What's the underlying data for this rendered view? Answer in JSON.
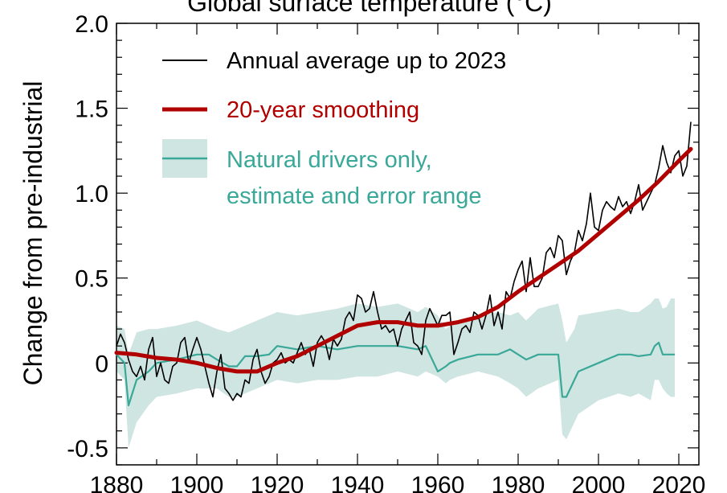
{
  "chart_data": {
    "type": "line",
    "title": "Global surface temperature (°C)",
    "xlabel": "",
    "ylabel": "Change from pre-industrial",
    "xlim": [
      1880,
      2025
    ],
    "ylim": [
      -0.6,
      2.0
    ],
    "x_ticks": [
      "1880",
      "1900",
      "1920",
      "1940",
      "1960",
      "1980",
      "2000",
      "2020"
    ],
    "y_ticks": [
      "2.0",
      "1.5",
      "1.0",
      "0.5",
      "0",
      "-0.5"
    ],
    "x_tick_values": [
      1880,
      1900,
      1920,
      1940,
      1960,
      1980,
      2000,
      2020
    ],
    "y_tick_values": [
      2.0,
      1.5,
      1.0,
      0.5,
      0,
      -0.5
    ],
    "grid": false,
    "legend_position": "top-left",
    "legend": {
      "annual": "Annual average up to 2023",
      "smooth": "20-year smoothing",
      "natural_line1": "Natural drivers only,",
      "natural_line2": "estimate and error range"
    },
    "colors": {
      "annual": "#000000",
      "smooth": "#b00000",
      "natural_line": "#3aa898",
      "natural_band": "#cfe5e2"
    },
    "series": [
      {
        "name": "Annual average up to 2023",
        "x": [
          1880,
          1881,
          1882,
          1883,
          1884,
          1885,
          1886,
          1887,
          1888,
          1889,
          1890,
          1891,
          1892,
          1893,
          1894,
          1895,
          1896,
          1897,
          1898,
          1899,
          1900,
          1901,
          1902,
          1903,
          1904,
          1905,
          1906,
          1907,
          1908,
          1909,
          1910,
          1911,
          1912,
          1913,
          1914,
          1915,
          1916,
          1917,
          1918,
          1919,
          1920,
          1921,
          1922,
          1923,
          1924,
          1925,
          1926,
          1927,
          1928,
          1929,
          1930,
          1931,
          1932,
          1933,
          1934,
          1935,
          1936,
          1937,
          1938,
          1939,
          1940,
          1941,
          1942,
          1943,
          1944,
          1945,
          1946,
          1947,
          1948,
          1949,
          1950,
          1951,
          1952,
          1953,
          1954,
          1955,
          1956,
          1957,
          1958,
          1959,
          1960,
          1961,
          1962,
          1963,
          1964,
          1965,
          1966,
          1967,
          1968,
          1969,
          1970,
          1971,
          1972,
          1973,
          1974,
          1975,
          1976,
          1977,
          1978,
          1979,
          1980,
          1981,
          1982,
          1983,
          1984,
          1985,
          1986,
          1987,
          1988,
          1989,
          1990,
          1991,
          1992,
          1993,
          1994,
          1995,
          1996,
          1997,
          1998,
          1999,
          2000,
          2001,
          2002,
          2003,
          2004,
          2005,
          2006,
          2007,
          2008,
          2009,
          2010,
          2011,
          2012,
          2013,
          2014,
          2015,
          2016,
          2017,
          2018,
          2019,
          2020,
          2021,
          2022,
          2023
        ],
        "values": [
          0.1,
          0.17,
          0.12,
          0.02,
          -0.05,
          -0.08,
          -0.02,
          -0.1,
          0.08,
          0.15,
          -0.08,
          0.0,
          -0.1,
          -0.12,
          -0.02,
          0.0,
          0.12,
          0.15,
          0.0,
          0.08,
          0.15,
          0.08,
          -0.02,
          -0.12,
          -0.2,
          -0.05,
          0.05,
          -0.15,
          -0.18,
          -0.22,
          -0.18,
          -0.2,
          -0.1,
          -0.12,
          0.02,
          0.08,
          -0.05,
          -0.12,
          -0.08,
          0.0,
          0.02,
          0.06,
          0.0,
          0.02,
          0.0,
          0.06,
          0.12,
          0.05,
          0.08,
          -0.02,
          0.12,
          0.16,
          0.12,
          0.02,
          0.14,
          0.1,
          0.14,
          0.26,
          0.3,
          0.25,
          0.4,
          0.38,
          0.3,
          0.32,
          0.42,
          0.3,
          0.2,
          0.22,
          0.18,
          0.2,
          0.1,
          0.2,
          0.25,
          0.3,
          0.12,
          0.1,
          0.05,
          0.25,
          0.32,
          0.27,
          0.22,
          0.28,
          0.28,
          0.3,
          0.05,
          0.12,
          0.2,
          0.22,
          0.18,
          0.3,
          0.28,
          0.2,
          0.28,
          0.4,
          0.22,
          0.3,
          0.2,
          0.42,
          0.38,
          0.48,
          0.55,
          0.6,
          0.42,
          0.62,
          0.45,
          0.45,
          0.5,
          0.65,
          0.68,
          0.62,
          0.75,
          0.72,
          0.52,
          0.6,
          0.65,
          0.78,
          0.72,
          0.82,
          1.0,
          0.8,
          0.78,
          0.9,
          0.95,
          0.92,
          0.9,
          0.98,
          0.92,
          0.95,
          0.88,
          0.95,
          1.05,
          0.9,
          0.95,
          1.0,
          1.05,
          1.15,
          1.28,
          1.18,
          1.12,
          1.22,
          1.25,
          1.1,
          1.16,
          1.42
        ]
      },
      {
        "name": "20-year smoothing",
        "x": [
          1880,
          1885,
          1890,
          1895,
          1900,
          1905,
          1910,
          1915,
          1920,
          1925,
          1930,
          1935,
          1940,
          1945,
          1950,
          1955,
          1960,
          1965,
          1970,
          1975,
          1980,
          1985,
          1990,
          1995,
          2000,
          2005,
          2010,
          2015,
          2020,
          2023
        ],
        "values": [
          0.06,
          0.05,
          0.03,
          0.02,
          0.0,
          -0.03,
          -0.05,
          -0.05,
          0.0,
          0.04,
          0.1,
          0.16,
          0.22,
          0.24,
          0.24,
          0.22,
          0.22,
          0.24,
          0.27,
          0.33,
          0.42,
          0.5,
          0.58,
          0.66,
          0.76,
          0.86,
          0.96,
          1.07,
          1.19,
          1.26
        ]
      },
      {
        "name": "Natural drivers only, estimate and error range",
        "x": [
          1880,
          1882,
          1883,
          1885,
          1888,
          1890,
          1895,
          1900,
          1903,
          1905,
          1908,
          1910,
          1912,
          1915,
          1918,
          1920,
          1925,
          1930,
          1935,
          1940,
          1945,
          1950,
          1955,
          1957,
          1960,
          1962,
          1963,
          1965,
          1970,
          1975,
          1978,
          1980,
          1982,
          1985,
          1990,
          1991,
          1992,
          1994,
          1995,
          2000,
          2005,
          2008,
          2010,
          2013,
          2014,
          2015,
          2016,
          2017,
          2018,
          2019
        ],
        "values": [
          0.05,
          0.0,
          -0.25,
          -0.1,
          -0.05,
          0.0,
          0.02,
          0.05,
          0.05,
          0.02,
          -0.02,
          -0.02,
          0.04,
          0.04,
          0.05,
          0.1,
          0.08,
          0.1,
          0.08,
          0.1,
          0.1,
          0.1,
          0.08,
          0.1,
          -0.05,
          -0.02,
          0.0,
          0.02,
          0.05,
          0.05,
          0.08,
          0.05,
          0.02,
          0.05,
          0.05,
          -0.2,
          -0.2,
          -0.1,
          -0.05,
          0.0,
          0.05,
          0.05,
          0.04,
          0.05,
          0.1,
          0.12,
          0.05,
          0.05,
          0.05,
          0.05
        ],
        "lower": [
          -0.05,
          -0.1,
          -0.5,
          -0.35,
          -0.25,
          -0.2,
          -0.18,
          -0.15,
          -0.15,
          -0.15,
          -0.2,
          -0.2,
          -0.18,
          -0.15,
          -0.12,
          -0.1,
          -0.12,
          -0.1,
          -0.1,
          -0.08,
          -0.08,
          -0.05,
          -0.08,
          -0.05,
          -0.08,
          -0.12,
          -0.1,
          -0.08,
          -0.05,
          -0.08,
          -0.12,
          -0.15,
          -0.2,
          -0.15,
          -0.1,
          -0.42,
          -0.45,
          -0.35,
          -0.3,
          -0.22,
          -0.18,
          -0.2,
          -0.18,
          -0.22,
          -0.1,
          -0.1,
          -0.15,
          -0.18,
          -0.2,
          -0.2
        ],
        "upper": [
          0.22,
          0.2,
          0.05,
          0.18,
          0.2,
          0.2,
          0.22,
          0.25,
          0.22,
          0.2,
          0.18,
          0.2,
          0.22,
          0.25,
          0.28,
          0.3,
          0.28,
          0.3,
          0.32,
          0.35,
          0.33,
          0.35,
          0.3,
          0.33,
          0.28,
          0.2,
          0.22,
          0.25,
          0.28,
          0.3,
          0.28,
          0.3,
          0.25,
          0.32,
          0.35,
          0.25,
          0.12,
          0.2,
          0.28,
          0.3,
          0.32,
          0.3,
          0.3,
          0.35,
          0.38,
          0.38,
          0.32,
          0.33,
          0.38,
          0.38
        ]
      }
    ]
  }
}
